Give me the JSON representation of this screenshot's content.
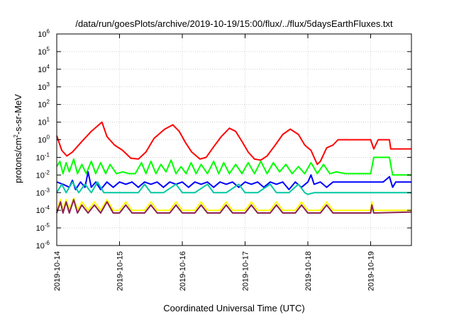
{
  "chart_data": {
    "type": "line",
    "title": "/data/run/goesPlots/archive/2019-10-19/15:00/flux/../flux/5daysEarthFluxes.txt",
    "xlabel": "Coordinated Universal Time (UTC)",
    "ylabel": {
      "text": "protons/cm",
      "sup1": "2",
      "rest": "-s-sr-MeV"
    },
    "yscale": "log",
    "ylim_exp": [
      -6,
      6
    ],
    "ytick_base": "10",
    "yticks_exp": [
      "-6",
      "-5",
      "-4",
      "-3",
      "-2",
      "-1",
      "0",
      "1",
      "2",
      "3",
      "4",
      "5",
      "6"
    ],
    "xlim_days": [
      0,
      5.65
    ],
    "xtick_labels": [
      "2019-10-14",
      "2019-10-15",
      "2019-10-16",
      "2019-10-17",
      "2019-10-18",
      "2019-10-19"
    ],
    "grid": true,
    "series": [
      {
        "color": "#ff0000",
        "points": [
          [
            0,
            1.7
          ],
          [
            0.08,
            0.25
          ],
          [
            0.16,
            0.12
          ],
          [
            0.25,
            0.2
          ],
          [
            0.4,
            0.8
          ],
          [
            0.55,
            3
          ],
          [
            0.72,
            10
          ],
          [
            0.8,
            1.5
          ],
          [
            0.92,
            0.5
          ],
          [
            1.05,
            0.25
          ],
          [
            1.18,
            0.09
          ],
          [
            1.3,
            0.08
          ],
          [
            1.42,
            0.2
          ],
          [
            1.55,
            1.2
          ],
          [
            1.72,
            4
          ],
          [
            1.85,
            7
          ],
          [
            1.95,
            3
          ],
          [
            2.05,
            0.7
          ],
          [
            2.15,
            0.2
          ],
          [
            2.28,
            0.08
          ],
          [
            2.38,
            0.1
          ],
          [
            2.5,
            0.4
          ],
          [
            2.62,
            1.5
          ],
          [
            2.75,
            4.5
          ],
          [
            2.85,
            3
          ],
          [
            2.95,
            0.8
          ],
          [
            3.05,
            0.2
          ],
          [
            3.15,
            0.08
          ],
          [
            3.25,
            0.07
          ],
          [
            3.35,
            0.12
          ],
          [
            3.48,
            0.5
          ],
          [
            3.6,
            2
          ],
          [
            3.72,
            4
          ],
          [
            3.85,
            2
          ],
          [
            3.95,
            0.5
          ],
          [
            4.05,
            0.25
          ],
          [
            4.1,
            0.1
          ],
          [
            4.15,
            0.04
          ],
          [
            4.2,
            0.06
          ],
          [
            4.3,
            0.35
          ],
          [
            4.4,
            0.5
          ],
          [
            4.48,
            1
          ],
          [
            4.6,
            1
          ],
          [
            4.7,
            1
          ],
          [
            4.85,
            1
          ],
          [
            5.0,
            1
          ],
          [
            5.05,
            0.3
          ],
          [
            5.12,
            1
          ],
          [
            5.2,
            1
          ],
          [
            5.3,
            1
          ],
          [
            5.32,
            0.3
          ],
          [
            5.4,
            0.3
          ],
          [
            5.65,
            0.3
          ]
        ]
      },
      {
        "color": "#00ff00",
        "points": [
          [
            0,
            0.03
          ],
          [
            0.05,
            0.06
          ],
          [
            0.1,
            0.012
          ],
          [
            0.15,
            0.05
          ],
          [
            0.2,
            0.015
          ],
          [
            0.27,
            0.08
          ],
          [
            0.33,
            0.012
          ],
          [
            0.4,
            0.04
          ],
          [
            0.47,
            0.012
          ],
          [
            0.55,
            0.06
          ],
          [
            0.62,
            0.012
          ],
          [
            0.7,
            0.05
          ],
          [
            0.78,
            0.012
          ],
          [
            0.85,
            0.04
          ],
          [
            0.95,
            0.012
          ],
          [
            1.05,
            0.015
          ],
          [
            1.15,
            0.012
          ],
          [
            1.25,
            0.012
          ],
          [
            1.35,
            0.05
          ],
          [
            1.42,
            0.012
          ],
          [
            1.5,
            0.06
          ],
          [
            1.58,
            0.012
          ],
          [
            1.66,
            0.04
          ],
          [
            1.74,
            0.015
          ],
          [
            1.82,
            0.07
          ],
          [
            1.9,
            0.012
          ],
          [
            1.98,
            0.03
          ],
          [
            2.06,
            0.012
          ],
          [
            2.14,
            0.05
          ],
          [
            2.22,
            0.012
          ],
          [
            2.3,
            0.04
          ],
          [
            2.4,
            0.012
          ],
          [
            2.5,
            0.06
          ],
          [
            2.58,
            0.012
          ],
          [
            2.66,
            0.05
          ],
          [
            2.75,
            0.012
          ],
          [
            2.85,
            0.04
          ],
          [
            2.95,
            0.012
          ],
          [
            3.05,
            0.05
          ],
          [
            3.15,
            0.012
          ],
          [
            3.25,
            0.06
          ],
          [
            3.35,
            0.012
          ],
          [
            3.45,
            0.05
          ],
          [
            3.55,
            0.015
          ],
          [
            3.65,
            0.04
          ],
          [
            3.75,
            0.012
          ],
          [
            3.85,
            0.03
          ],
          [
            3.95,
            0.012
          ],
          [
            4.05,
            0.05
          ],
          [
            4.15,
            0.012
          ],
          [
            4.25,
            0.04
          ],
          [
            4.35,
            0.012
          ],
          [
            4.45,
            0.015
          ],
          [
            4.6,
            0.012
          ],
          [
            5.0,
            0.012
          ],
          [
            5.05,
            0.1
          ],
          [
            5.3,
            0.1
          ],
          [
            5.35,
            0.01
          ],
          [
            5.65,
            0.01
          ]
        ]
      },
      {
        "color": "#0000ff",
        "points": [
          [
            0,
            0.004
          ],
          [
            0.1,
            0.003
          ],
          [
            0.2,
            0.002
          ],
          [
            0.25,
            0.005
          ],
          [
            0.3,
            0.0015
          ],
          [
            0.38,
            0.004
          ],
          [
            0.45,
            0.002
          ],
          [
            0.5,
            0.015
          ],
          [
            0.55,
            0.002
          ],
          [
            0.62,
            0.004
          ],
          [
            0.7,
            0.0015
          ],
          [
            0.8,
            0.004
          ],
          [
            0.9,
            0.002
          ],
          [
            1.0,
            0.004
          ],
          [
            1.1,
            0.003
          ],
          [
            1.2,
            0.004
          ],
          [
            1.3,
            0.002
          ],
          [
            1.4,
            0.004
          ],
          [
            1.5,
            0.003
          ],
          [
            1.6,
            0.004
          ],
          [
            1.7,
            0.002
          ],
          [
            1.8,
            0.004
          ],
          [
            1.9,
            0.003
          ],
          [
            2.0,
            0.004
          ],
          [
            2.1,
            0.002
          ],
          [
            2.2,
            0.004
          ],
          [
            2.3,
            0.003
          ],
          [
            2.4,
            0.004
          ],
          [
            2.5,
            0.002
          ],
          [
            2.6,
            0.004
          ],
          [
            2.7,
            0.003
          ],
          [
            2.8,
            0.004
          ],
          [
            2.9,
            0.002
          ],
          [
            3.0,
            0.004
          ],
          [
            3.1,
            0.003
          ],
          [
            3.2,
            0.004
          ],
          [
            3.3,
            0.002
          ],
          [
            3.4,
            0.004
          ],
          [
            3.5,
            0.003
          ],
          [
            3.6,
            0.004
          ],
          [
            3.7,
            0.0015
          ],
          [
            3.8,
            0.004
          ],
          [
            3.9,
            0.002
          ],
          [
            4.0,
            0.004
          ],
          [
            4.05,
            0.01
          ],
          [
            4.1,
            0.003
          ],
          [
            4.2,
            0.004
          ],
          [
            4.3,
            0.002
          ],
          [
            4.4,
            0.004
          ],
          [
            4.6,
            0.004
          ],
          [
            5.0,
            0.004
          ],
          [
            5.2,
            0.004
          ],
          [
            5.3,
            0.008
          ],
          [
            5.35,
            0.002
          ],
          [
            5.4,
            0.004
          ],
          [
            5.65,
            0.004
          ]
        ]
      },
      {
        "color": "#00c8a0",
        "points": [
          [
            0,
            0.001
          ],
          [
            0.08,
            0.003
          ],
          [
            0.15,
            0.001
          ],
          [
            0.25,
            0.004
          ],
          [
            0.35,
            0.001
          ],
          [
            0.45,
            0.003
          ],
          [
            0.55,
            0.001
          ],
          [
            0.65,
            0.004
          ],
          [
            0.75,
            0.001
          ],
          [
            0.9,
            0.001
          ],
          [
            1.1,
            0.001
          ],
          [
            1.3,
            0.001
          ],
          [
            1.4,
            0.003
          ],
          [
            1.5,
            0.001
          ],
          [
            1.7,
            0.001
          ],
          [
            1.9,
            0.003
          ],
          [
            2.0,
            0.001
          ],
          [
            2.2,
            0.001
          ],
          [
            2.4,
            0.003
          ],
          [
            2.5,
            0.001
          ],
          [
            2.7,
            0.001
          ],
          [
            2.9,
            0.003
          ],
          [
            3.0,
            0.001
          ],
          [
            3.2,
            0.001
          ],
          [
            3.4,
            0.003
          ],
          [
            3.5,
            0.001
          ],
          [
            3.7,
            0.001
          ],
          [
            3.85,
            0.003
          ],
          [
            3.95,
            0.001
          ],
          [
            4.0,
            0.0008
          ],
          [
            4.1,
            0.001
          ],
          [
            4.3,
            0.001
          ],
          [
            4.6,
            0.001
          ],
          [
            5.0,
            0.001
          ],
          [
            5.65,
            0.001
          ]
        ]
      },
      {
        "color": "#ffff00",
        "points": [
          [
            0,
            0.0001
          ],
          [
            0.06,
            0.0004
          ],
          [
            0.1,
            0.0001
          ],
          [
            0.15,
            0.0004
          ],
          [
            0.2,
            0.0001
          ],
          [
            0.27,
            0.0005
          ],
          [
            0.33,
            0.0001
          ],
          [
            0.4,
            0.0003
          ],
          [
            0.5,
            0.0001
          ],
          [
            0.6,
            0.0003
          ],
          [
            0.7,
            0.0001
          ],
          [
            0.8,
            0.0004
          ],
          [
            0.9,
            0.0001
          ],
          [
            1.0,
            0.0001
          ],
          [
            1.1,
            0.0003
          ],
          [
            1.2,
            0.0001
          ],
          [
            1.4,
            0.0001
          ],
          [
            1.5,
            0.0003
          ],
          [
            1.6,
            0.0001
          ],
          [
            1.8,
            0.0001
          ],
          [
            1.9,
            0.0003
          ],
          [
            2.0,
            0.0001
          ],
          [
            2.2,
            0.0001
          ],
          [
            2.3,
            0.0003
          ],
          [
            2.4,
            0.0001
          ],
          [
            2.6,
            0.0001
          ],
          [
            2.7,
            0.0003
          ],
          [
            2.8,
            0.0001
          ],
          [
            3.0,
            0.0001
          ],
          [
            3.1,
            0.0003
          ],
          [
            3.2,
            0.0001
          ],
          [
            3.4,
            0.0001
          ],
          [
            3.5,
            0.0003
          ],
          [
            3.6,
            0.0001
          ],
          [
            3.8,
            0.0001
          ],
          [
            3.9,
            0.0003
          ],
          [
            4.0,
            0.0001
          ],
          [
            4.2,
            0.0001
          ],
          [
            4.3,
            0.0003
          ],
          [
            4.4,
            0.0001
          ],
          [
            4.6,
            0.0001
          ],
          [
            5.0,
            0.0001
          ],
          [
            5.02,
            0.0003
          ],
          [
            5.05,
            0.0001
          ],
          [
            5.65,
            0.0001
          ]
        ]
      },
      {
        "color": "#8b2252",
        "points": [
          [
            0,
            7e-05
          ],
          [
            0.06,
            0.0003
          ],
          [
            0.1,
            7e-05
          ],
          [
            0.15,
            0.0003
          ],
          [
            0.2,
            7e-05
          ],
          [
            0.27,
            0.0004
          ],
          [
            0.33,
            7e-05
          ],
          [
            0.4,
            0.0002
          ],
          [
            0.5,
            7e-05
          ],
          [
            0.6,
            0.0002
          ],
          [
            0.7,
            7e-05
          ],
          [
            0.8,
            0.0003
          ],
          [
            0.9,
            7e-05
          ],
          [
            1.0,
            7e-05
          ],
          [
            1.1,
            0.0002
          ],
          [
            1.2,
            7e-05
          ],
          [
            1.4,
            7e-05
          ],
          [
            1.5,
            0.0002
          ],
          [
            1.6,
            7e-05
          ],
          [
            1.8,
            7e-05
          ],
          [
            1.9,
            0.0002
          ],
          [
            2.0,
            7e-05
          ],
          [
            2.2,
            7e-05
          ],
          [
            2.3,
            0.0002
          ],
          [
            2.4,
            7e-05
          ],
          [
            2.6,
            7e-05
          ],
          [
            2.7,
            0.0002
          ],
          [
            2.8,
            7e-05
          ],
          [
            3.0,
            7e-05
          ],
          [
            3.1,
            0.0002
          ],
          [
            3.2,
            7e-05
          ],
          [
            3.4,
            7e-05
          ],
          [
            3.5,
            0.0002
          ],
          [
            3.6,
            7e-05
          ],
          [
            3.8,
            7e-05
          ],
          [
            3.9,
            0.0002
          ],
          [
            4.0,
            7e-05
          ],
          [
            4.2,
            7e-05
          ],
          [
            4.3,
            0.0002
          ],
          [
            4.4,
            7e-05
          ],
          [
            4.6,
            7e-05
          ],
          [
            5.0,
            7e-05
          ],
          [
            5.02,
            0.0002
          ],
          [
            5.05,
            7e-05
          ],
          [
            5.65,
            8e-05
          ]
        ]
      }
    ]
  }
}
